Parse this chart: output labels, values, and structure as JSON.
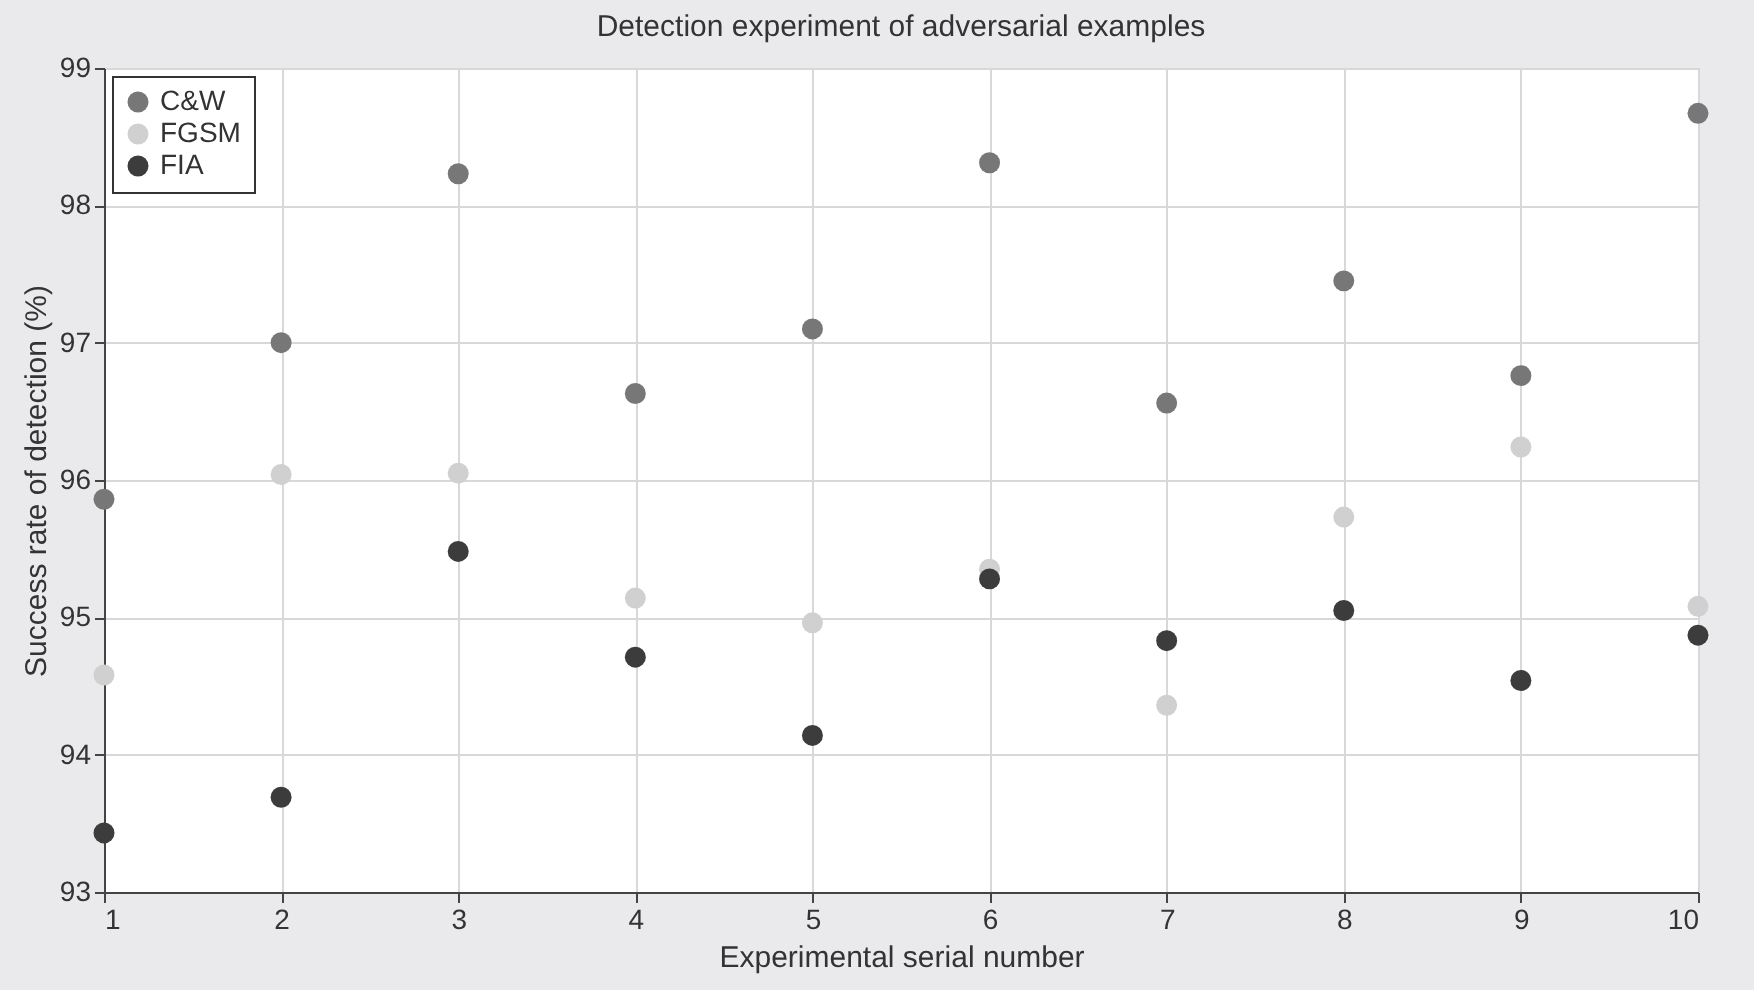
{
  "chart_data": {
    "type": "scatter",
    "title": "Detection experiment of adversarial examples",
    "xlabel": "Experimental serial number",
    "ylabel": "Success rate of detection (%)",
    "x": [
      1,
      2,
      3,
      4,
      5,
      6,
      7,
      8,
      9,
      10
    ],
    "series": [
      {
        "name": "C&W",
        "color": "#777777",
        "values": [
          95.86,
          97.0,
          98.23,
          96.63,
          97.1,
          98.31,
          96.56,
          97.45,
          96.76,
          98.67
        ]
      },
      {
        "name": "FGSM",
        "color": "#d0d0d0",
        "values": [
          94.58,
          96.04,
          96.05,
          95.14,
          94.96,
          95.35,
          94.36,
          95.73,
          96.24,
          95.08
        ]
      },
      {
        "name": "FIA",
        "color": "#3c3c3c",
        "values": [
          93.43,
          93.69,
          95.48,
          94.71,
          94.14,
          95.28,
          94.83,
          95.05,
          94.54,
          94.87
        ]
      }
    ],
    "xlim": [
      1,
      10
    ],
    "xticks": [
      1,
      2,
      3,
      4,
      5,
      6,
      7,
      8,
      9,
      10
    ],
    "ylim": [
      93,
      99
    ],
    "yticks": [
      93,
      94,
      95,
      96,
      97,
      98,
      99
    ],
    "grid": true,
    "legend": "top left",
    "marker": "circle"
  }
}
